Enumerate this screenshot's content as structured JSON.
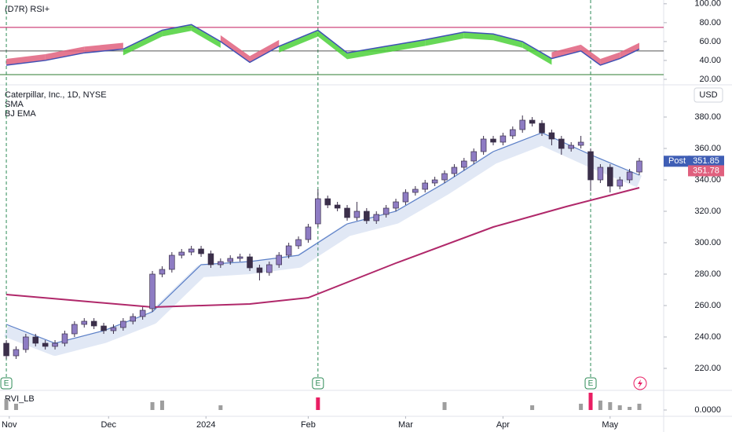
{
  "chart_data": {
    "type": "candlestick",
    "title": "Caterpillar, Inc., 1D, NYSE",
    "indicators": [
      "SMA",
      "BJ EMA"
    ],
    "currency": "USD",
    "xlim": [
      -1.3,
      135
    ],
    "xticks": [
      {
        "value": 0.6,
        "label": "Nov"
      },
      {
        "value": 21,
        "label": "Dec"
      },
      {
        "value": 41,
        "label": "2024"
      },
      {
        "value": 62,
        "label": "Feb"
      },
      {
        "value": 82,
        "label": "Mar"
      },
      {
        "value": 102,
        "label": "Apr"
      },
      {
        "value": 124,
        "label": "May"
      }
    ],
    "ylim": [
      207,
      399.5
    ],
    "yticks": [
      {
        "value": 220,
        "label": "220.00"
      },
      {
        "value": 240,
        "label": "240.00"
      },
      {
        "value": 260,
        "label": "260.00"
      },
      {
        "value": 280,
        "label": "280.00"
      },
      {
        "value": 300,
        "label": "300.00"
      },
      {
        "value": 320,
        "label": "320.00"
      },
      {
        "value": 340,
        "label": "340.00"
      },
      {
        "value": 360,
        "label": "360.00"
      },
      {
        "value": 380,
        "label": "380.00"
      }
    ],
    "up_color": "#8e7cc3",
    "down_color": "#3b2f4a",
    "candles": {
      "x": [
        0,
        2,
        4,
        6,
        8,
        10,
        12,
        14,
        16,
        18,
        20,
        22,
        24,
        26,
        28,
        30,
        32,
        34,
        36,
        38,
        40,
        42,
        44,
        46,
        48,
        50,
        52,
        54,
        56,
        58,
        60,
        62,
        64,
        66,
        68,
        70,
        72,
        74,
        76,
        78,
        80,
        82,
        84,
        86,
        88,
        90,
        92,
        94,
        96,
        98,
        100,
        102,
        104,
        106,
        108,
        110,
        112,
        114,
        116,
        118,
        120,
        122,
        124,
        126,
        128,
        130
      ],
      "open": [
        236,
        228,
        232,
        240,
        236,
        234,
        236,
        242,
        248,
        250,
        247,
        244,
        246,
        250,
        253,
        258,
        280,
        283,
        292,
        294,
        296,
        293,
        286,
        288,
        290,
        291,
        284,
        281,
        286,
        292,
        298,
        302,
        312,
        328,
        324,
        322,
        316,
        320,
        314,
        318,
        322,
        326,
        332,
        334,
        338,
        340,
        344,
        348,
        352,
        358,
        366,
        364,
        368,
        372,
        378,
        376,
        370,
        366,
        360,
        362,
        358,
        340,
        348,
        336,
        340,
        345
      ],
      "high": [
        238,
        234,
        242,
        242,
        238,
        238,
        244,
        250,
        252,
        252,
        249,
        248,
        252,
        255,
        259,
        282,
        285,
        294,
        296,
        298,
        298,
        295,
        290,
        292,
        293,
        293,
        286,
        288,
        294,
        300,
        304,
        312,
        334,
        330,
        326,
        324,
        326,
        322,
        320,
        324,
        328,
        334,
        336,
        340,
        342,
        346,
        350,
        354,
        360,
        368,
        368,
        370,
        374,
        381,
        380,
        378,
        372,
        368,
        364,
        368,
        360,
        350,
        350,
        342,
        347,
        354
      ],
      "low": [
        226,
        226,
        230,
        234,
        232,
        232,
        234,
        240,
        246,
        245,
        242,
        242,
        244,
        248,
        251,
        256,
        278,
        281,
        290,
        292,
        291,
        284,
        284,
        286,
        288,
        282,
        276,
        279,
        284,
        290,
        296,
        300,
        310,
        322,
        320,
        314,
        314,
        312,
        312,
        316,
        320,
        324,
        330,
        332,
        336,
        338,
        342,
        346,
        350,
        356,
        362,
        362,
        366,
        370,
        374,
        368,
        362,
        356,
        358,
        360,
        333,
        338,
        332,
        334,
        338,
        343
      ],
      "close": [
        228,
        232,
        240,
        236,
        234,
        236,
        242,
        248,
        250,
        247,
        244,
        246,
        250,
        253,
        257,
        280,
        283,
        292,
        294,
        296,
        293,
        286,
        288,
        290,
        291,
        284,
        281,
        286,
        292,
        298,
        302,
        310,
        328,
        324,
        322,
        316,
        320,
        314,
        318,
        322,
        326,
        332,
        334,
        338,
        340,
        344,
        348,
        352,
        358,
        366,
        364,
        368,
        372,
        378,
        376,
        370,
        366,
        360,
        362,
        364,
        340,
        348,
        336,
        340,
        345,
        352
      ]
    },
    "sma": {
      "name": "SMA",
      "color": "#b0286a",
      "x": [
        0,
        30,
        50,
        62,
        80,
        100,
        115,
        130
      ],
      "values": [
        267,
        259,
        261,
        265,
        287,
        310,
        323,
        335
      ]
    },
    "ema": {
      "name": "BJ EMA",
      "color": "#5b7fc7",
      "x": [
        0,
        10,
        20,
        30,
        40,
        50,
        60,
        70,
        80,
        90,
        100,
        110,
        120,
        130
      ],
      "values": [
        248,
        236,
        244,
        256,
        286,
        288,
        292,
        312,
        320,
        338,
        358,
        370,
        356,
        343
      ]
    },
    "post_label": "Post",
    "post_price": 351.85,
    "ema_price": 351.78,
    "events": {
      "label": "E",
      "x": [
        0,
        64,
        120
      ],
      "color": "#2e8b57"
    },
    "rsi": {
      "title": "(D7R) RSI+",
      "color": "#3f51b5",
      "ylim": [
        15,
        104
      ],
      "yticks": [
        {
          "value": 20,
          "label": "20.00"
        },
        {
          "value": 40,
          "label": "40.00"
        },
        {
          "value": 60,
          "label": "60.00"
        },
        {
          "value": 80,
          "label": "80.00"
        },
        {
          "value": 100,
          "label": "100.00"
        }
      ],
      "levels": [
        75,
        50,
        25
      ],
      "level_colors": [
        "#c2185b",
        "#555555",
        "#2e7d32"
      ],
      "x": [
        0,
        8,
        16,
        24,
        32,
        38,
        44,
        50,
        56,
        64,
        70,
        78,
        86,
        94,
        100,
        106,
        112,
        118,
        122,
        126,
        130
      ],
      "values": [
        35,
        40,
        48,
        52,
        72,
        78,
        60,
        38,
        55,
        72,
        48,
        55,
        62,
        70,
        68,
        60,
        42,
        50,
        35,
        42,
        52
      ]
    },
    "rvi": {
      "title": "RVI_LB",
      "color": "#9e9e9e",
      "ylim": [
        0,
        1.2
      ],
      "yticks": [
        {
          "value": 0,
          "label": "0.0000"
        }
      ],
      "x": [
        0,
        2,
        30,
        32,
        44,
        64,
        90,
        108,
        118,
        120,
        122,
        124,
        126,
        128,
        130
      ],
      "values": [
        0.7,
        0.4,
        0.5,
        0.6,
        0.3,
        0.8,
        0.5,
        0.3,
        0.4,
        1.1,
        0.6,
        0.5,
        0.3,
        0.2,
        0.4
      ]
    }
  }
}
